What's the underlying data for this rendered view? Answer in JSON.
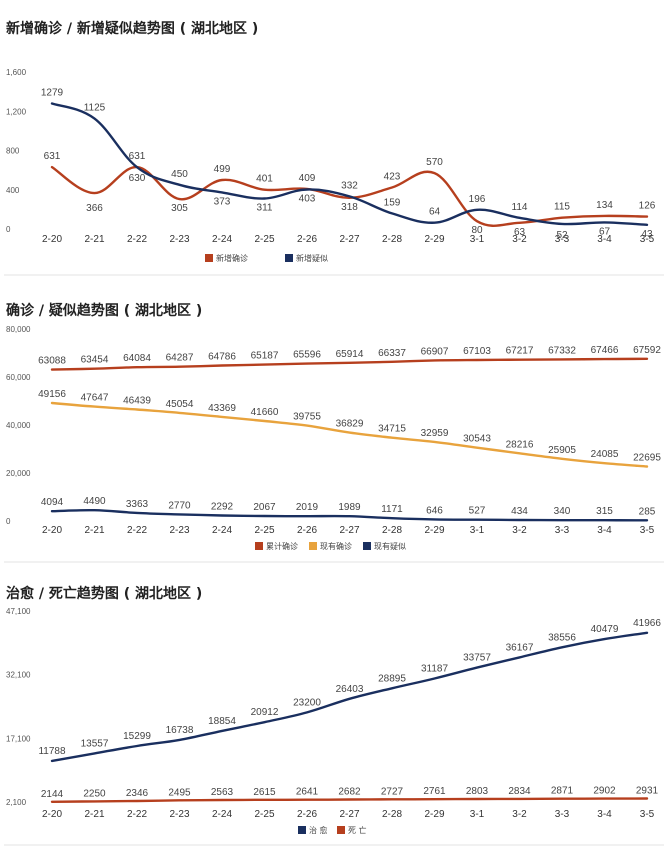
{
  "panels": [
    {
      "title": "新增确诊 / 新增疑似趋势图 ( 湖北地区 )",
      "chart_data": {
        "type": "line",
        "categories": [
          "2-20",
          "2-21",
          "2-22",
          "2-23",
          "2-24",
          "2-25",
          "2-26",
          "2-27",
          "2-28",
          "2-29",
          "3-1",
          "3-2",
          "3-3",
          "3-4",
          "3-5"
        ],
        "yticks": [
          0,
          400,
          800,
          1200,
          1600
        ],
        "ytick_labels": [
          "0",
          "400",
          "800",
          "1,200",
          "1,600"
        ],
        "ylim": [
          0,
          1600
        ],
        "grid": false,
        "legend": "bottom",
        "series": [
          {
            "name": "新增确诊",
            "color": "#b63f1e",
            "values": [
              631,
              366,
              631,
              305,
              499,
              401,
              409,
              318,
              423,
              570,
              80,
              63,
              115,
              134,
              126
            ],
            "labels": [
              "631",
              "366",
              "631",
              "305",
              "499",
              "401",
              "409",
              "318",
              "423",
              "570",
              "80",
              "63",
              "115",
              "134",
              "126"
            ]
          },
          {
            "name": "新增疑似",
            "color": "#1a2f5f",
            "values": [
              1279,
              1125,
              630,
              450,
              373,
              311,
              403,
              332,
              159,
              64,
              196,
              114,
              52,
              67,
              43
            ],
            "labels": [
              "1279",
              "1125",
              "630",
              "450",
              "373",
              "311",
              "403",
              "332",
              "159",
              "64",
              "196",
              "114",
              "52",
              "67",
              "43"
            ]
          }
        ]
      }
    },
    {
      "title": "确诊 / 疑似趋势图 ( 湖北地区 )",
      "chart_data": {
        "type": "line",
        "categories": [
          "2-20",
          "2-21",
          "2-22",
          "2-23",
          "2-24",
          "2-25",
          "2-26",
          "2-27",
          "2-28",
          "2-29",
          "3-1",
          "3-2",
          "3-3",
          "3-4",
          "3-5"
        ],
        "yticks": [
          0,
          20000,
          40000,
          60000,
          80000
        ],
        "ytick_labels": [
          "0",
          "20,000",
          "40,000",
          "60,000",
          "80,000"
        ],
        "ylim": [
          0,
          80000
        ],
        "grid": false,
        "legend": "bottom",
        "series": [
          {
            "name": "累计确诊",
            "color": "#b63f1e",
            "values": [
              63088,
              63454,
              64084,
              64287,
              64786,
              65187,
              65596,
              65914,
              66337,
              66907,
              67103,
              67217,
              67332,
              67466,
              67592
            ],
            "labels": [
              "63088",
              "63454",
              "64084",
              "64287",
              "64786",
              "65187",
              "65596",
              "65914",
              "66337",
              "66907",
              "67103",
              "67217",
              "67332",
              "67466",
              "67592"
            ]
          },
          {
            "name": "现有确诊",
            "color": "#e8a33d",
            "values": [
              49156,
              47647,
              46439,
              45054,
              43369,
              41660,
              39755,
              36829,
              34715,
              32959,
              30543,
              28216,
              25905,
              24085,
              22695
            ],
            "labels": [
              "49156",
              "47647",
              "46439",
              "45054",
              "43369",
              "41660",
              "39755",
              "36829",
              "34715",
              "32959",
              "30543",
              "28216",
              "25905",
              "24085",
              "22695"
            ]
          },
          {
            "name": "现有疑似",
            "color": "#1a2f5f",
            "values": [
              4094,
              4490,
              3363,
              2770,
              2292,
              2067,
              2019,
              1989,
              1171,
              646,
              527,
              434,
              340,
              315,
              285
            ],
            "labels": [
              "4094",
              "4490",
              "3363",
              "2770",
              "2292",
              "2067",
              "2019",
              "1989",
              "1171",
              "646",
              "527",
              "434",
              "340",
              "315",
              "285"
            ]
          }
        ]
      }
    },
    {
      "title": "治愈 / 死亡趋势图 ( 湖北地区 )",
      "chart_data": {
        "type": "line",
        "categories": [
          "2-20",
          "2-21",
          "2-22",
          "2-23",
          "2-24",
          "2-25",
          "2-26",
          "2-27",
          "2-28",
          "2-29",
          "3-1",
          "3-2",
          "3-3",
          "3-4",
          "3-5"
        ],
        "yticks": [
          2100,
          17100,
          32100,
          47100
        ],
        "ytick_labels": [
          "2,100",
          "17,100",
          "32,100",
          "47,100"
        ],
        "ylim": [
          2100,
          47100
        ],
        "grid": false,
        "legend": "bottom",
        "series": [
          {
            "name": "治 愈",
            "color": "#1a2f5f",
            "values": [
              11788,
              13557,
              15299,
              16738,
              18854,
              20912,
              23200,
              26403,
              28895,
              31187,
              33757,
              36167,
              38556,
              40479,
              41966
            ],
            "labels": [
              "11788",
              "13557",
              "15299",
              "16738",
              "18854",
              "20912",
              "23200",
              "26403",
              "28895",
              "31187",
              "33757",
              "36167",
              "38556",
              "40479",
              "41966"
            ]
          },
          {
            "name": "死 亡",
            "color": "#b63f1e",
            "values": [
              2144,
              2250,
              2346,
              2495,
              2563,
              2615,
              2641,
              2682,
              2727,
              2761,
              2803,
              2834,
              2871,
              2902,
              2931
            ],
            "labels": [
              "2144",
              "2250",
              "2346",
              "2495",
              "2563",
              "2615",
              "2641",
              "2682",
              "2727",
              "2761",
              "2803",
              "2834",
              "2871",
              "2902",
              "2931"
            ]
          }
        ]
      }
    }
  ]
}
